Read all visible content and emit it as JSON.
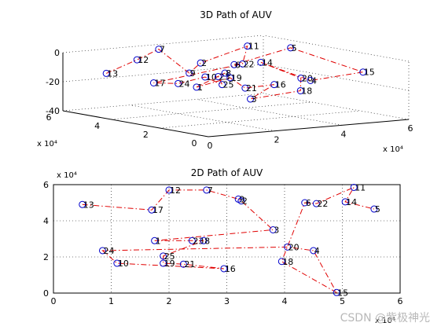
{
  "watermark": "CSDN @紫极神光",
  "chart_data": [
    {
      "type": "line3d",
      "title": "3D Path of AUV",
      "x_exponent": "x 10⁴",
      "y_exponent": "x 10⁴",
      "xlim": [
        0,
        60000
      ],
      "ylim": [
        0,
        60000
      ],
      "zlim": [
        -40,
        0
      ],
      "x_ticks": [
        "0",
        "2",
        "4",
        "6"
      ],
      "y_ticks": [
        "0",
        "2",
        "4",
        "6"
      ],
      "z_ticks": [
        "0",
        "-20",
        "-40"
      ],
      "grid": true,
      "nodes": [
        {
          "label": "13",
          "x": 5000,
          "y": 49000,
          "z": -12
        },
        {
          "label": "12",
          "x": 20000,
          "y": 57000,
          "z": -8
        },
        {
          "label": "7",
          "x": 26500,
          "y": 57000,
          "z": -2
        },
        {
          "label": "9",
          "x": 32000,
          "y": 52000,
          "z": -18
        },
        {
          "label": "2",
          "x": 32500,
          "y": 48000,
          "z": -10
        },
        {
          "label": "11",
          "x": 54500,
          "y": 59000,
          "z": -6
        },
        {
          "label": "22",
          "x": 46500,
          "y": 50000,
          "z": -14
        },
        {
          "label": "17",
          "x": 17000,
          "y": 46000,
          "z": -20
        },
        {
          "label": "24",
          "x": 8000,
          "y": 23500,
          "z": -12
        },
        {
          "label": "10",
          "x": 11000,
          "y": 16500,
          "z": -6
        },
        {
          "label": "25",
          "x": 19000,
          "y": 20500,
          "z": -14
        },
        {
          "label": "23",
          "x": 24000,
          "y": 29000,
          "z": -12
        },
        {
          "label": "8",
          "x": 26000,
          "y": 29000,
          "z": -10
        },
        {
          "label": "1",
          "x": 17500,
          "y": 29000,
          "z": -18
        },
        {
          "label": "19",
          "x": 18500,
          "y": 16500,
          "z": -8
        },
        {
          "label": "21",
          "x": 23000,
          "y": 16500,
          "z": -16
        },
        {
          "label": "16",
          "x": 29500,
          "y": 13500,
          "z": -14
        },
        {
          "label": "3",
          "x": 38000,
          "y": 35000,
          "z": -32
        },
        {
          "label": "18",
          "x": 41000,
          "y": 18500,
          "z": -22
        },
        {
          "label": "20",
          "x": 45500,
          "y": 24500,
          "z": -16
        },
        {
          "label": "14",
          "x": 52000,
          "y": 50000,
          "z": -14
        },
        {
          "label": "4",
          "x": 48000,
          "y": 24000,
          "z": -18
        },
        {
          "label": "15",
          "x": 55000,
          "y": 12000,
          "z": -10
        },
        {
          "label": "5",
          "x": 58000,
          "y": 46000,
          "z": -4
        },
        {
          "label": "6",
          "x": 44000,
          "y": 50000,
          "z": -14
        }
      ]
    },
    {
      "type": "line",
      "title": "2D Path of AUV",
      "x_exponent": "x 10⁴",
      "y_exponent": "x 10⁴",
      "xlim": [
        0,
        60000
      ],
      "ylim": [
        0,
        60000
      ],
      "x_ticks": [
        "0",
        "1",
        "2",
        "3",
        "4",
        "5",
        "6"
      ],
      "y_ticks": [
        "0",
        "2",
        "4",
        "6"
      ],
      "grid": true,
      "nodes": [
        {
          "label": "13",
          "x": 5000,
          "y": 49000
        },
        {
          "label": "17",
          "x": 17000,
          "y": 46000
        },
        {
          "label": "12",
          "x": 20000,
          "y": 57000
        },
        {
          "label": "7",
          "x": 26500,
          "y": 57000
        },
        {
          "label": "9",
          "x": 32000,
          "y": 52000
        },
        {
          "label": "2",
          "x": 32500,
          "y": 51000
        },
        {
          "label": "3",
          "x": 38000,
          "y": 35000
        },
        {
          "label": "1",
          "x": 17500,
          "y": 29000
        },
        {
          "label": "23",
          "x": 24000,
          "y": 29000
        },
        {
          "label": "8",
          "x": 26000,
          "y": 29000
        },
        {
          "label": "25",
          "x": 19000,
          "y": 20500
        },
        {
          "label": "19",
          "x": 19000,
          "y": 16500
        },
        {
          "label": "21",
          "x": 22500,
          "y": 16000
        },
        {
          "label": "16",
          "x": 29500,
          "y": 13500
        },
        {
          "label": "10",
          "x": 11000,
          "y": 16500
        },
        {
          "label": "24",
          "x": 8500,
          "y": 23500
        },
        {
          "label": "20",
          "x": 40500,
          "y": 25500
        },
        {
          "label": "4",
          "x": 45000,
          "y": 23500
        },
        {
          "label": "18",
          "x": 39500,
          "y": 17500
        },
        {
          "label": "15",
          "x": 49000,
          "y": 300
        },
        {
          "label": "6",
          "x": 43500,
          "y": 50000
        },
        {
          "label": "22",
          "x": 45500,
          "y": 49500
        },
        {
          "label": "11",
          "x": 52000,
          "y": 58500
        },
        {
          "label": "14",
          "x": 50500,
          "y": 50500
        },
        {
          "label": "5",
          "x": 55500,
          "y": 46500
        }
      ],
      "path_order": [
        "13",
        "17",
        "12",
        "7",
        "9",
        "2",
        "3",
        "1",
        "23",
        "8",
        "25",
        "19",
        "21",
        "16",
        "10",
        "24",
        "20",
        "4",
        "15",
        "18",
        "6",
        "22",
        "11",
        "14",
        "5"
      ]
    }
  ]
}
